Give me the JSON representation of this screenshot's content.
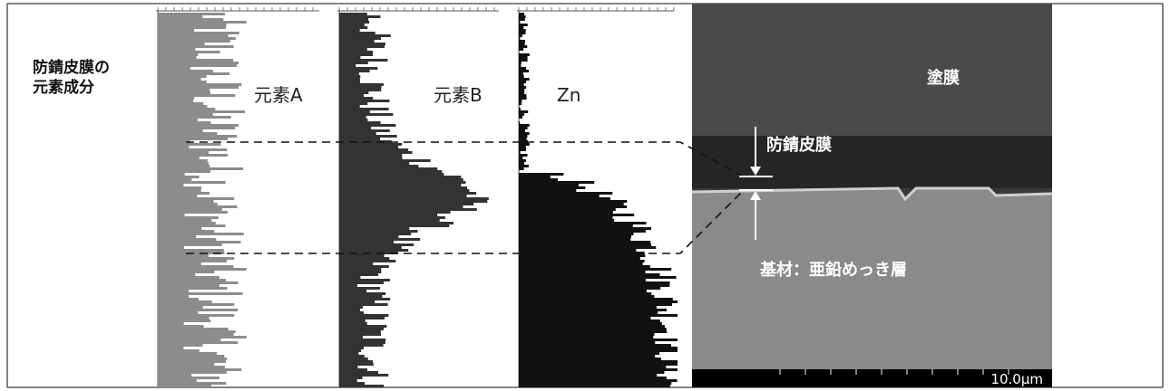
{
  "heading": {
    "line1": "防錆皮膜の",
    "line2": "元素成分"
  },
  "panels": [
    "元素A",
    "元素B",
    "Zn"
  ],
  "image": {
    "top_layer": "塗膜",
    "film": "防錆皮膜",
    "base": "基材：亜鉛めっき層",
    "scale": "10.0μm"
  }
}
